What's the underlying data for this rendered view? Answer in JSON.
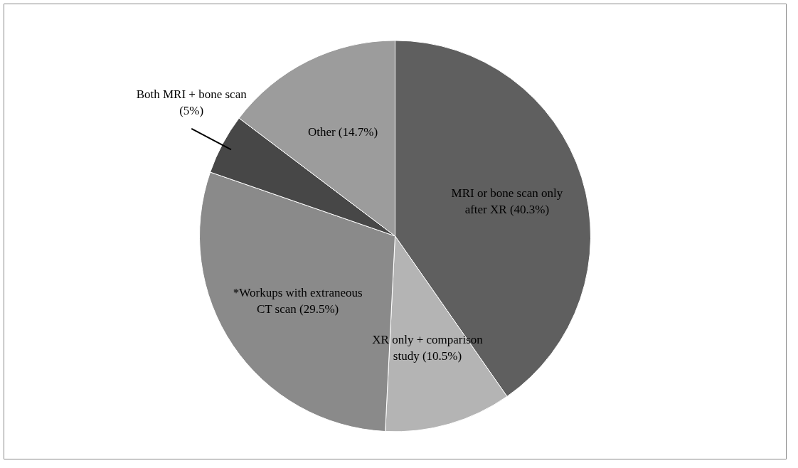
{
  "chart_data": {
    "type": "pie",
    "categories": [
      "MRI or bone scan only after XR (40.3%)",
      "XR only + comparison study (10.5%)",
      "*Workups with extraneous CT scan (29.5%)",
      "Both MRI + bone scan (5%)",
      "Other (14.7%)"
    ],
    "values": [
      40.3,
      10.5,
      29.5,
      5,
      14.7
    ],
    "colors": [
      "#5f5f5f",
      "#b4b4b4",
      "#8a8a8a",
      "#474747",
      "#9c9c9c"
    ]
  }
}
